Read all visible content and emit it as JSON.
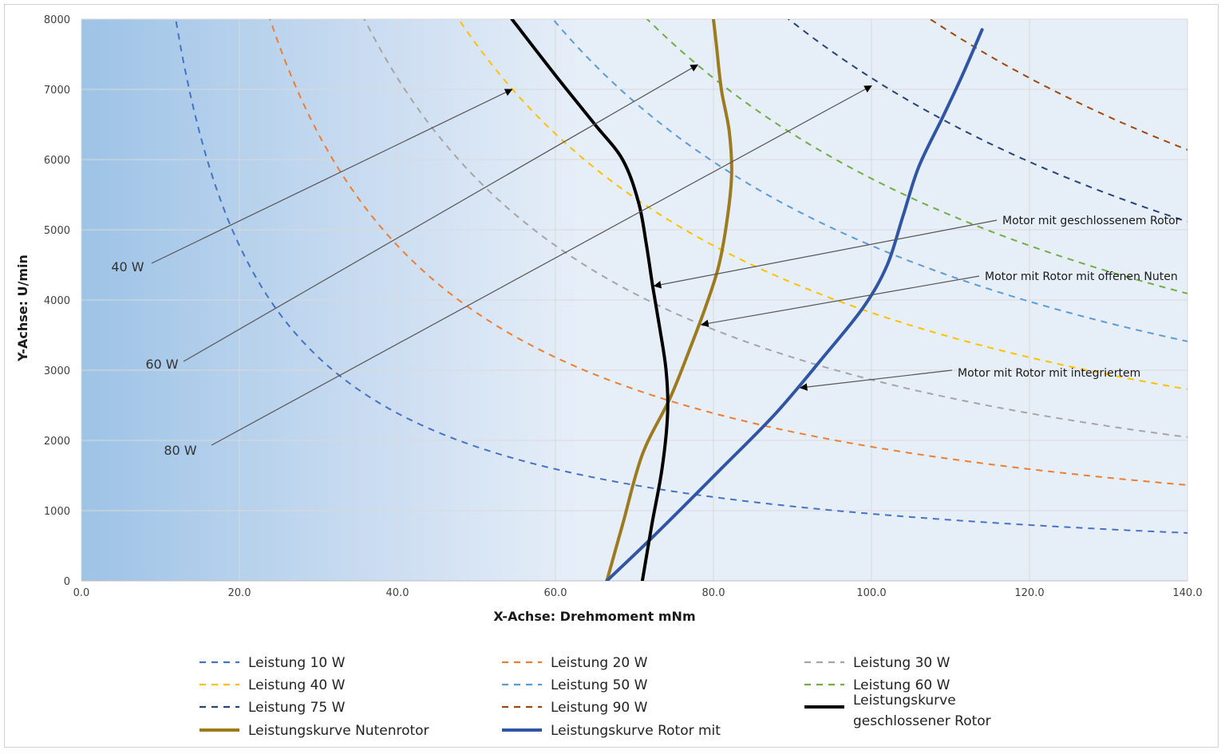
{
  "chart_data": {
    "type": "line",
    "title": "",
    "xlabel": "X-Achse: Drehmoment mNm",
    "ylabel": "Y-Achse: U/min",
    "xlim": [
      0,
      140
    ],
    "ylim": [
      0,
      8000
    ],
    "x_ticks": [
      "0.0",
      "20.0",
      "40.0",
      "60.0",
      "80.0",
      "100.0",
      "120.0",
      "140.0"
    ],
    "y_ticks": [
      "0",
      "1000",
      "2000",
      "3000",
      "4000",
      "5000",
      "6000",
      "7000",
      "8000"
    ],
    "grid": true,
    "legend_position": "bottom",
    "colors": {
      "p10": "#4472c4",
      "p20": "#ed7d31",
      "p30": "#a5a5a5",
      "p40": "#ffc000",
      "p50": "#5b9bd5",
      "p60": "#70ad47",
      "p75": "#264478",
      "p90": "#9e480e",
      "nutenrotor": "#9c7a1e",
      "rotor_mit": "#2f55a4",
      "geschlossen": "#000000",
      "plot_bg_left": "#9dc3e6",
      "plot_bg_right": "#e6eef8"
    },
    "power_series": [
      {
        "name": "Leistung 10 W",
        "watts": 10,
        "color_key": "p10"
      },
      {
        "name": "Leistung 20 W",
        "watts": 20,
        "color_key": "p20"
      },
      {
        "name": "Leistung 30 W",
        "watts": 30,
        "color_key": "p30"
      },
      {
        "name": "Leistung 40 W",
        "watts": 40,
        "color_key": "p40"
      },
      {
        "name": "Leistung 50 W",
        "watts": 50,
        "color_key": "p50"
      },
      {
        "name": "Leistung 60 W",
        "watts": 60,
        "color_key": "p60"
      },
      {
        "name": "Leistung 75 W",
        "watts": 75,
        "color_key": "p75"
      },
      {
        "name": "Leistung 90 W",
        "watts": 90,
        "color_key": "p90"
      }
    ],
    "curves": [
      {
        "name": "Leistungskurve Nutenrotor",
        "color_key": "nutenrotor",
        "points": [
          [
            66.5,
            0
          ],
          [
            68.5,
            800
          ],
          [
            71,
            1800
          ],
          [
            74.5,
            2600
          ],
          [
            77,
            3300
          ],
          [
            79,
            3900
          ],
          [
            80.7,
            4500
          ],
          [
            81.8,
            5200
          ],
          [
            82.3,
            5800
          ],
          [
            82,
            6400
          ],
          [
            81,
            7000
          ],
          [
            80.4,
            7600
          ],
          [
            80,
            8000
          ]
        ]
      },
      {
        "name": "Leistungskurve Rotor mit",
        "color_key": "rotor_mit",
        "points": [
          [
            66.5,
            0
          ],
          [
            73,
            700
          ],
          [
            81,
            1600
          ],
          [
            88,
            2400
          ],
          [
            94,
            3200
          ],
          [
            99,
            3900
          ],
          [
            102,
            4500
          ],
          [
            104,
            5200
          ],
          [
            106,
            5900
          ],
          [
            109,
            6600
          ],
          [
            111.5,
            7200
          ],
          [
            114,
            7850
          ]
        ]
      },
      {
        "name": "Leistungskurve geschlossener Rotor",
        "color_key": "geschlossen",
        "points": [
          [
            71,
            0
          ],
          [
            72.2,
            800
          ],
          [
            73.5,
            1600
          ],
          [
            74.2,
            2400
          ],
          [
            74,
            3000
          ],
          [
            73.2,
            3600
          ],
          [
            72.3,
            4200
          ],
          [
            71.5,
            4800
          ],
          [
            70.5,
            5400
          ],
          [
            68.5,
            6000
          ],
          [
            65,
            6500
          ],
          [
            60,
            7200
          ],
          [
            54.5,
            8000
          ]
        ]
      }
    ],
    "power_labels": [
      "40 W",
      "60 W",
      "80 W"
    ],
    "annotations": [
      {
        "text": "Motor mit geschlossenem Rotor",
        "target": [
          72.5,
          4200
        ]
      },
      {
        "text": "Motor mit Rotor mit offenen Nuten",
        "target": [
          78.5,
          3650
        ]
      },
      {
        "text": "Motor mit Rotor mit integriertem",
        "target": [
          91,
          2750
        ]
      }
    ],
    "power_arrows": [
      {
        "label": "40 W",
        "target": [
          54.5,
          7000
        ]
      },
      {
        "label": "60 W",
        "target": [
          78,
          7350
        ]
      },
      {
        "label": "80 W",
        "target": [
          100,
          7050
        ]
      }
    ],
    "legend": [
      {
        "label": "Leistung 10 W",
        "style": "dashed",
        "color_key": "p10"
      },
      {
        "label": "Leistung 20 W",
        "style": "dashed",
        "color_key": "p20"
      },
      {
        "label": "Leistung 30 W",
        "style": "dashed",
        "color_key": "p30"
      },
      {
        "label": "Leistung 40 W",
        "style": "dashed",
        "color_key": "p40"
      },
      {
        "label": "Leistung 50 W",
        "style": "dashed",
        "color_key": "p50"
      },
      {
        "label": "Leistung 60 W",
        "style": "dashed",
        "color_key": "p60"
      },
      {
        "label": "Leistung 75 W",
        "style": "dashed",
        "color_key": "p75"
      },
      {
        "label": "Leistung 90 W",
        "style": "dashed",
        "color_key": "p90"
      },
      {
        "label": "Leistungskurve geschlossener Rotor",
        "lines": [
          "Leistungskurve",
          "geschlossener Rotor"
        ],
        "style": "solid",
        "color_key": "geschlossen"
      },
      {
        "label": "Leistungskurve Nutenrotor",
        "style": "solid",
        "color_key": "nutenrotor"
      },
      {
        "label": "Leistungskurve Rotor mit",
        "style": "solid",
        "color_key": "rotor_mit"
      }
    ]
  }
}
